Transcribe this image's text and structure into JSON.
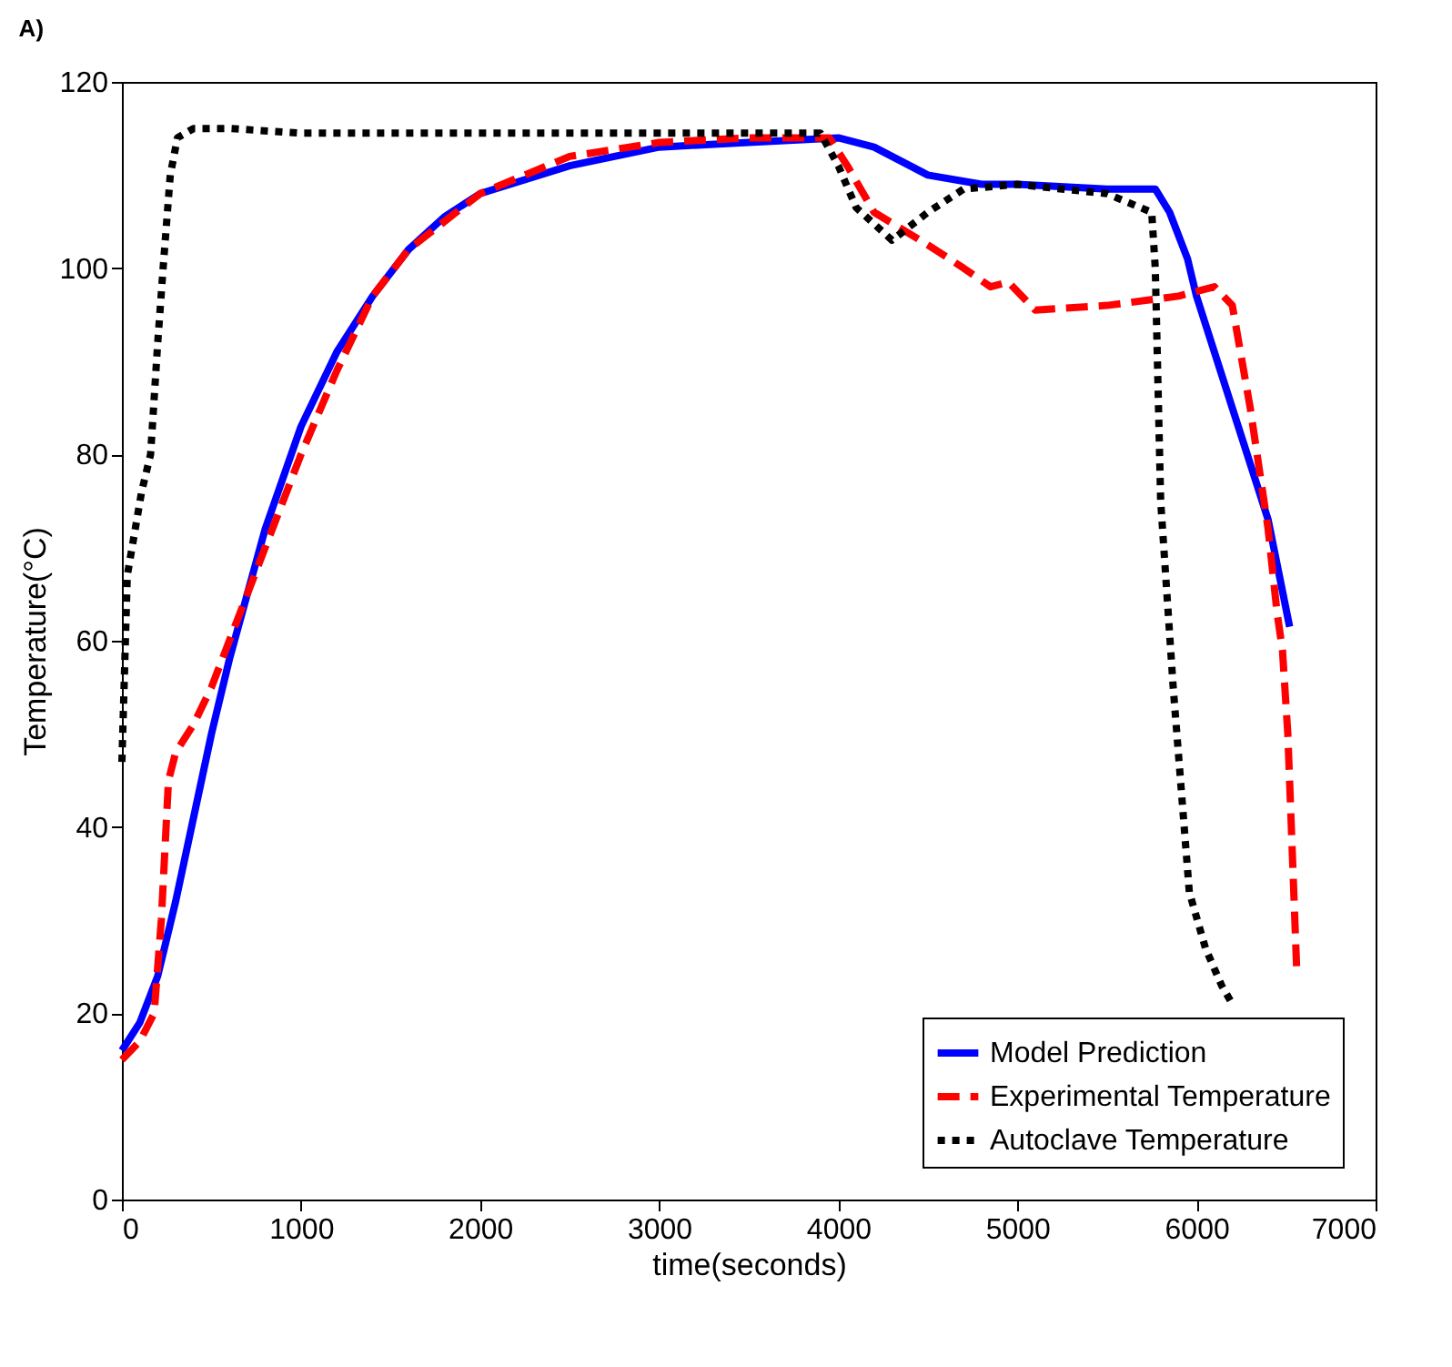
{
  "chart_data": {
    "type": "line",
    "title": "A)",
    "xlabel": "time(seconds)",
    "ylabel": "Temperature(°C)",
    "xlim": [
      0,
      7000
    ],
    "xticks": [
      0,
      1000,
      2000,
      3000,
      4000,
      5000,
      6000,
      7000
    ],
    "ylim": [
      0,
      120
    ],
    "yticks": [
      0,
      20,
      40,
      60,
      80,
      100,
      120
    ],
    "grid": false,
    "legend": "bottom right",
    "marker": "none",
    "series": [
      {
        "name": "Model Prediction",
        "color": "#0000ff",
        "line_style": "solid",
        "x": [
          0,
          100,
          200,
          300,
          400,
          500,
          600,
          800,
          1000,
          1200,
          1400,
          1600,
          1800,
          2000,
          2500,
          3000,
          3500,
          4000,
          4200,
          4500,
          4800,
          5000,
          5500,
          5770,
          5850,
          5950,
          6000,
          6200,
          6400,
          6520
        ],
        "values": [
          16,
          19,
          24,
          32,
          41,
          50,
          58,
          72,
          83,
          91,
          97,
          102,
          105.5,
          108,
          111,
          113,
          113.5,
          114,
          113,
          110,
          109,
          109,
          108.5,
          108.5,
          106,
          101,
          97,
          85,
          73,
          61.5
        ]
      },
      {
        "name": "Experimental Temperature",
        "color": "#ff0000",
        "line_style": "dashed",
        "x": [
          0,
          100,
          180,
          220,
          260,
          300,
          400,
          500,
          600,
          800,
          1000,
          1200,
          1400,
          1600,
          2000,
          2500,
          3000,
          3500,
          3950,
          4050,
          4200,
          4500,
          4700,
          4850,
          4950,
          5100,
          5500,
          5900,
          6100,
          6200,
          6300,
          6400,
          6450,
          6480,
          6510,
          6560
        ],
        "values": [
          15,
          17,
          20,
          30,
          45,
          48,
          51,
          55,
          60,
          70,
          80,
          89,
          97,
          102,
          108,
          112,
          113.5,
          114,
          114,
          111,
          106,
          102.5,
          100,
          98,
          98.5,
          95.5,
          96,
          97,
          98,
          96,
          85,
          72,
          63,
          59,
          50,
          24.5
        ]
      },
      {
        "name": "Autoclave Temperature",
        "color": "#000000",
        "line_style": "dotted",
        "x": [
          0,
          30,
          110,
          160,
          200,
          230,
          270,
          310,
          400,
          600,
          1000,
          2000,
          3000,
          3900,
          4000,
          4100,
          4300,
          4500,
          4700,
          5000,
          5500,
          5750,
          5770,
          5800,
          5870,
          5960,
          6050,
          6140,
          6200
        ],
        "values": [
          47,
          67,
          76,
          80,
          92,
          100,
          110,
          114,
          115,
          115,
          114.5,
          114.5,
          114.5,
          114.5,
          111,
          106.5,
          103,
          106,
          108.5,
          109,
          108,
          106,
          100,
          75,
          55,
          33,
          27,
          23,
          21
        ]
      }
    ]
  }
}
